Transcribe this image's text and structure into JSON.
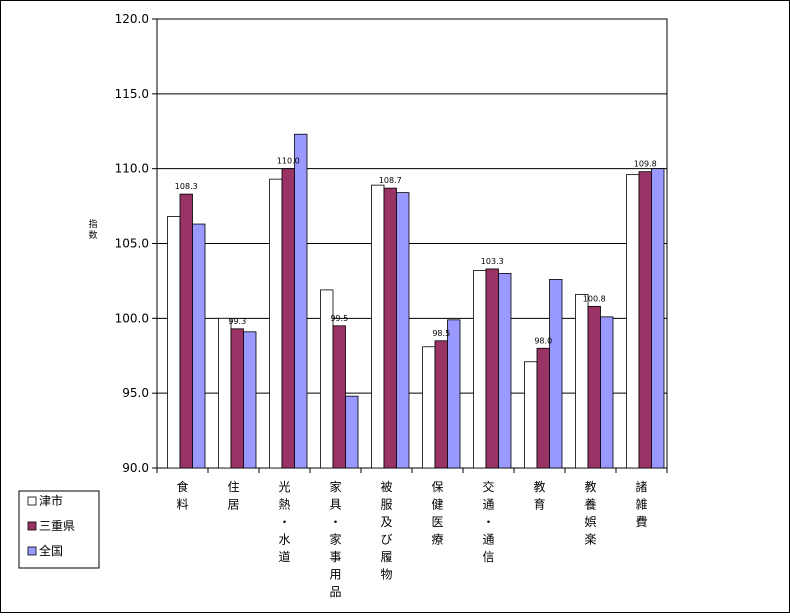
{
  "chart_data": {
    "type": "bar",
    "title": "",
    "xlabel": "",
    "ylabel": "指数",
    "ylim": [
      90,
      120
    ],
    "yticks": [
      "90.0",
      "95.0",
      "100.0",
      "105.0",
      "110.0",
      "115.0",
      "120.0"
    ],
    "grid": true,
    "legend_position": "bottom-left",
    "categories": [
      "食料",
      "住居",
      "光熱・水道",
      "家具・家事用品",
      "被服及び履物",
      "保健医療",
      "交通・通信",
      "教育",
      "教養娯楽",
      "諸雑費"
    ],
    "series": [
      {
        "name": "津市",
        "color": "#ffffff",
        "values": [
          106.8,
          100.0,
          109.3,
          101.9,
          108.9,
          98.1,
          103.2,
          97.1,
          101.6,
          109.6
        ]
      },
      {
        "name": "三重県",
        "color": "#993366",
        "values": [
          108.3,
          99.3,
          110.0,
          99.5,
          108.7,
          98.5,
          103.3,
          98.0,
          100.8,
          109.8
        ]
      },
      {
        "name": "全国",
        "color": "#9999ff",
        "values": [
          106.3,
          99.1,
          112.3,
          94.8,
          108.4,
          99.9,
          103.0,
          102.6,
          100.1,
          110.0
        ]
      }
    ],
    "data_labels": {
      "series": "三重県",
      "values": [
        "108.3",
        "99.3",
        "110.0",
        "99.5",
        "108.7",
        "98.5",
        "103.3",
        "98.0",
        "100.8",
        "109.8"
      ]
    }
  }
}
